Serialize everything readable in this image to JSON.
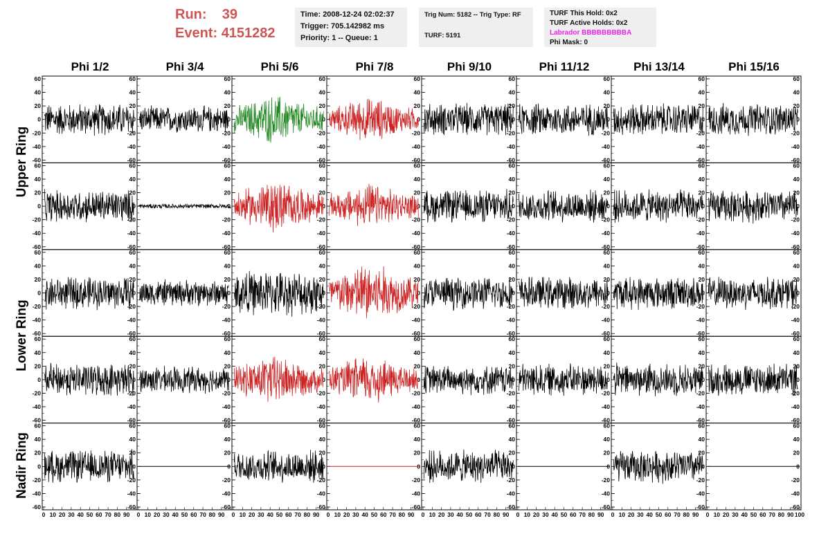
{
  "run": {
    "run_label": "Run:",
    "run_value": "39",
    "event_label": "Event:",
    "event_value": "4151282"
  },
  "info1": {
    "time": "Time: 2008-12-24 02:02:37",
    "trigger": "Trigger: 705.142982 ms",
    "priority": "Priority: 1 -- Queue: 1"
  },
  "info2": {
    "trig": "Trig Num: 5182 -- Trig Type: RF",
    "turf": "TURF: 5191"
  },
  "info3": {
    "this_hold": "TURF This Hold: 0x2",
    "active_holds": "TURF Active Holds: 0x2",
    "labrador": "Labrador BBBBBBBBBA",
    "phi_mask": "Phi Mask: 0"
  },
  "columns": [
    "Phi 1/2",
    "Phi 3/4",
    "Phi 5/6",
    "Phi 7/8",
    "Phi 9/10",
    "Phi 11/12",
    "Phi 13/14",
    "Phi 15/16"
  ],
  "rows": [
    {
      "label": "Upper Ring"
    },
    {
      "label": "Lower Ring"
    },
    {
      "label": "Nadir Ring"
    }
  ],
  "colors": {
    "run_text": "#cc5555",
    "default_trace": "#000000",
    "triggered_trace": "#cc2222",
    "green_trace": "#228822",
    "magenta": "#ee22ee"
  },
  "chart_data": {
    "type": "line",
    "ylim": [
      -60,
      60
    ],
    "xlim": [
      0,
      100
    ],
    "yticks": [
      "60",
      "40",
      "20",
      "0",
      "-20",
      "-40",
      "-60"
    ],
    "xticks": [
      "0",
      "10",
      "20",
      "30",
      "40",
      "50",
      "60",
      "70",
      "80",
      "90",
      "100"
    ],
    "panels": [
      [
        "black",
        "black",
        "green",
        "red",
        "black",
        "black",
        "black",
        "black"
      ],
      [
        "black",
        "flat-small",
        "red",
        "red",
        "black",
        "black",
        "black",
        "black"
      ],
      [
        "black",
        "black",
        "black",
        "red",
        "black",
        "black",
        "black",
        "black"
      ],
      [
        "black",
        "black",
        "red",
        "red",
        "black",
        "black",
        "black",
        "black"
      ],
      [
        "black",
        "flat",
        "black",
        "flat-red",
        "black",
        "flat",
        "black",
        "flat"
      ]
    ],
    "amplitudes": [
      [
        22,
        18,
        28,
        25,
        22,
        22,
        22,
        22
      ],
      [
        22,
        3,
        30,
        25,
        22,
        22,
        22,
        22
      ],
      [
        22,
        18,
        30,
        35,
        22,
        22,
        22,
        22
      ],
      [
        22,
        18,
        28,
        28,
        20,
        22,
        22,
        22
      ],
      [
        22,
        0,
        22,
        0,
        22,
        0,
        22,
        0
      ]
    ]
  }
}
